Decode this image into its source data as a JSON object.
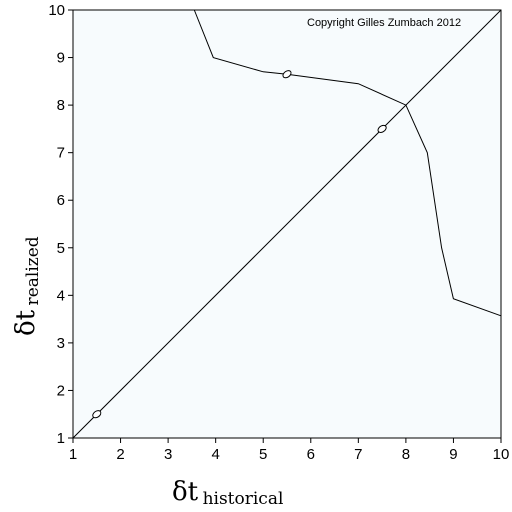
{
  "chart_data": {
    "type": "line",
    "xlabel": {
      "symbol": "δt",
      "subscript": "historical"
    },
    "ylabel": {
      "symbol": "δt",
      "subscript": "realized"
    },
    "xlim": [
      1,
      10
    ],
    "ylim": [
      1,
      10
    ],
    "xticks": [
      "1",
      "2",
      "3",
      "4",
      "5",
      "6",
      "7",
      "8",
      "9",
      "10"
    ],
    "yticks": [
      "1",
      "2",
      "3",
      "4",
      "5",
      "6",
      "7",
      "8",
      "9",
      "10"
    ],
    "annotation": "Copyright Gilles Zumbach 2012",
    "plot_background": "#f7fbfd",
    "series": [
      {
        "x": [
          1,
          10
        ],
        "y": [
          1,
          10
        ]
      },
      {
        "x": [
          3.55,
          3.95,
          5.0,
          5.5,
          7.0,
          8.0,
          8.45,
          8.75,
          9.0,
          10.0
        ],
        "y": [
          10.0,
          9.0,
          8.7,
          8.65,
          8.45,
          8.0,
          7.0,
          5.0,
          3.93,
          3.57
        ]
      }
    ],
    "markers": [
      {
        "x": 1.5,
        "y": 1.5
      },
      {
        "x": 5.5,
        "y": 8.65
      },
      {
        "x": 7.5,
        "y": 7.5
      }
    ]
  }
}
